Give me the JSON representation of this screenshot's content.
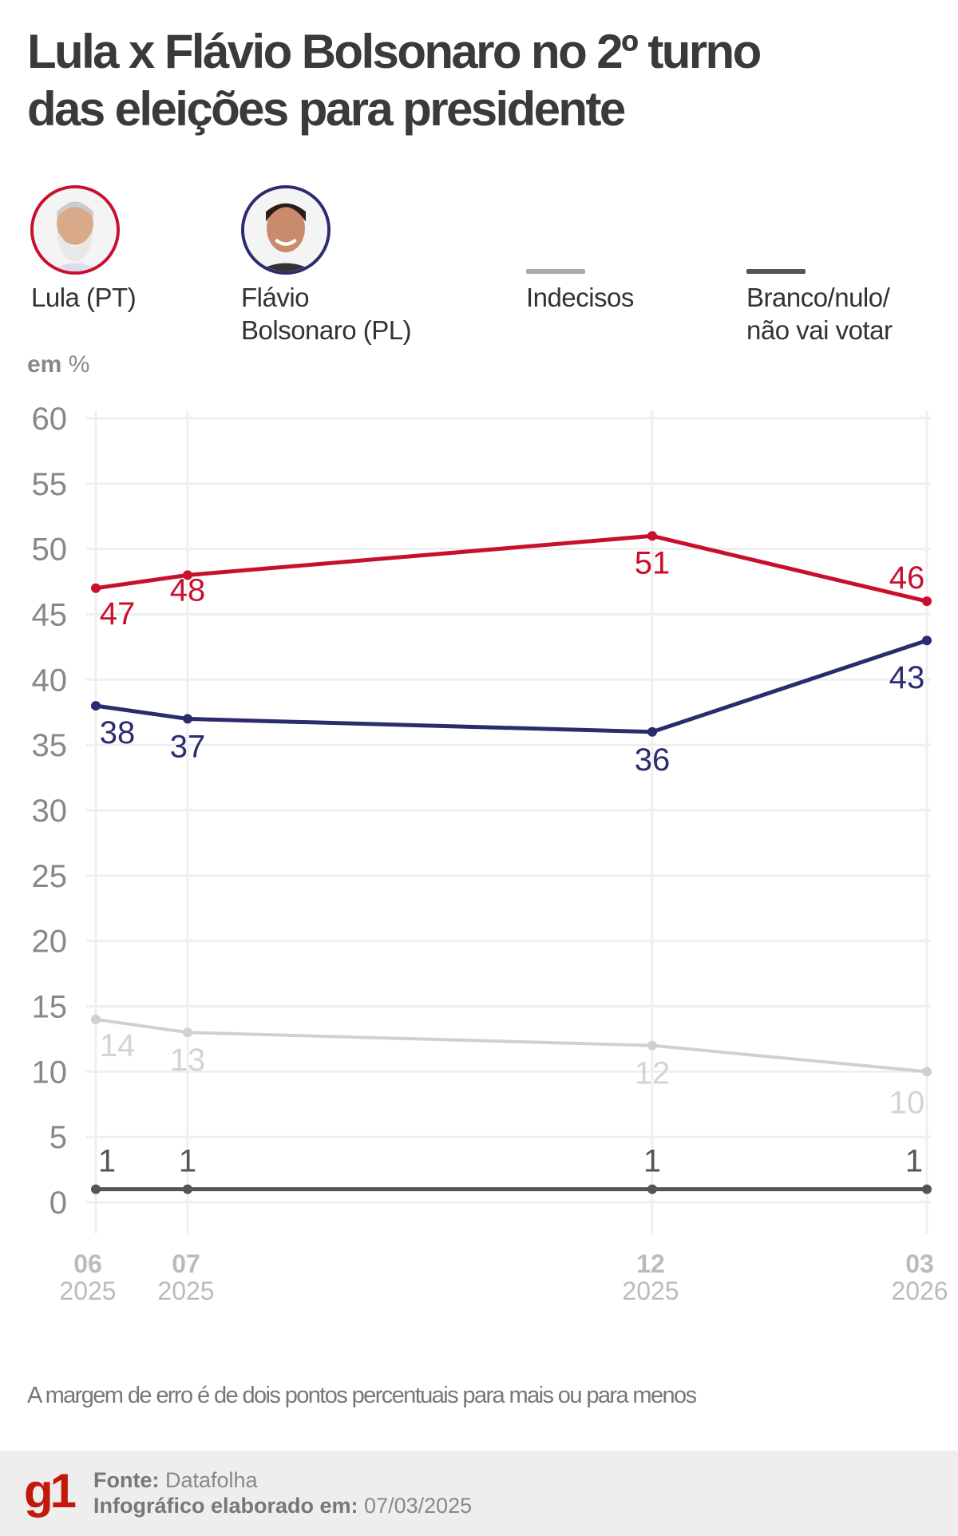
{
  "title": {
    "line1": "Lula x Flávio Bolsonaro no 2º turno",
    "line2": "das eleições para presidente"
  },
  "legend": [
    {
      "label_lines": [
        "Lula (PT)"
      ],
      "color": "#c8102e",
      "marker": "photo-lula"
    },
    {
      "label_lines": [
        "Flávio",
        "Bolsonaro (PL)"
      ],
      "color": "#2b2c6e",
      "marker": "photo-flavio"
    },
    {
      "label_lines": [
        "Indecisos"
      ],
      "color": "#d0d0d0",
      "marker": "line"
    },
    {
      "label_lines": [
        "Branco/nulo/",
        "não vai votar"
      ],
      "color": "#555555",
      "marker": "line"
    }
  ],
  "unit_label": {
    "bold": "em",
    "rest": " %"
  },
  "chart_data": {
    "type": "line",
    "categories": [
      {
        "month": "06",
        "year": "2025"
      },
      {
        "month": "07",
        "year": "2025"
      },
      {
        "month": "12",
        "year": "2025"
      },
      {
        "month": "03",
        "year": "2026"
      }
    ],
    "x_dates": [
      "2025-06",
      "2025-07",
      "2025-12",
      "2026-03"
    ],
    "ylim": [
      0,
      60
    ],
    "yticks": [
      0,
      5,
      10,
      15,
      20,
      25,
      30,
      35,
      40,
      45,
      50,
      55,
      60
    ],
    "grid": true,
    "series": [
      {
        "name": "Lula (PT)",
        "color": "#c8102e",
        "values": [
          47,
          48,
          51,
          46
        ]
      },
      {
        "name": "Flávio Bolsonaro (PL)",
        "color": "#2b2c6e",
        "values": [
          38,
          37,
          36,
          43
        ]
      },
      {
        "name": "Indecisos",
        "color": "#d0d0d0",
        "values": [
          14,
          13,
          12,
          10
        ]
      },
      {
        "name": "Branco/nulo/não vai votar",
        "color": "#555555",
        "values": [
          1,
          1,
          1,
          1
        ]
      }
    ]
  },
  "note": "A margem de erro é de dois pontos percentuais para mais ou para menos",
  "footer": {
    "logo": "g1",
    "source_label": "Fonte:",
    "source_value": " Datafolha",
    "made_label": "Infográfico elaborado em:",
    "made_value": " 07/03/2025"
  }
}
